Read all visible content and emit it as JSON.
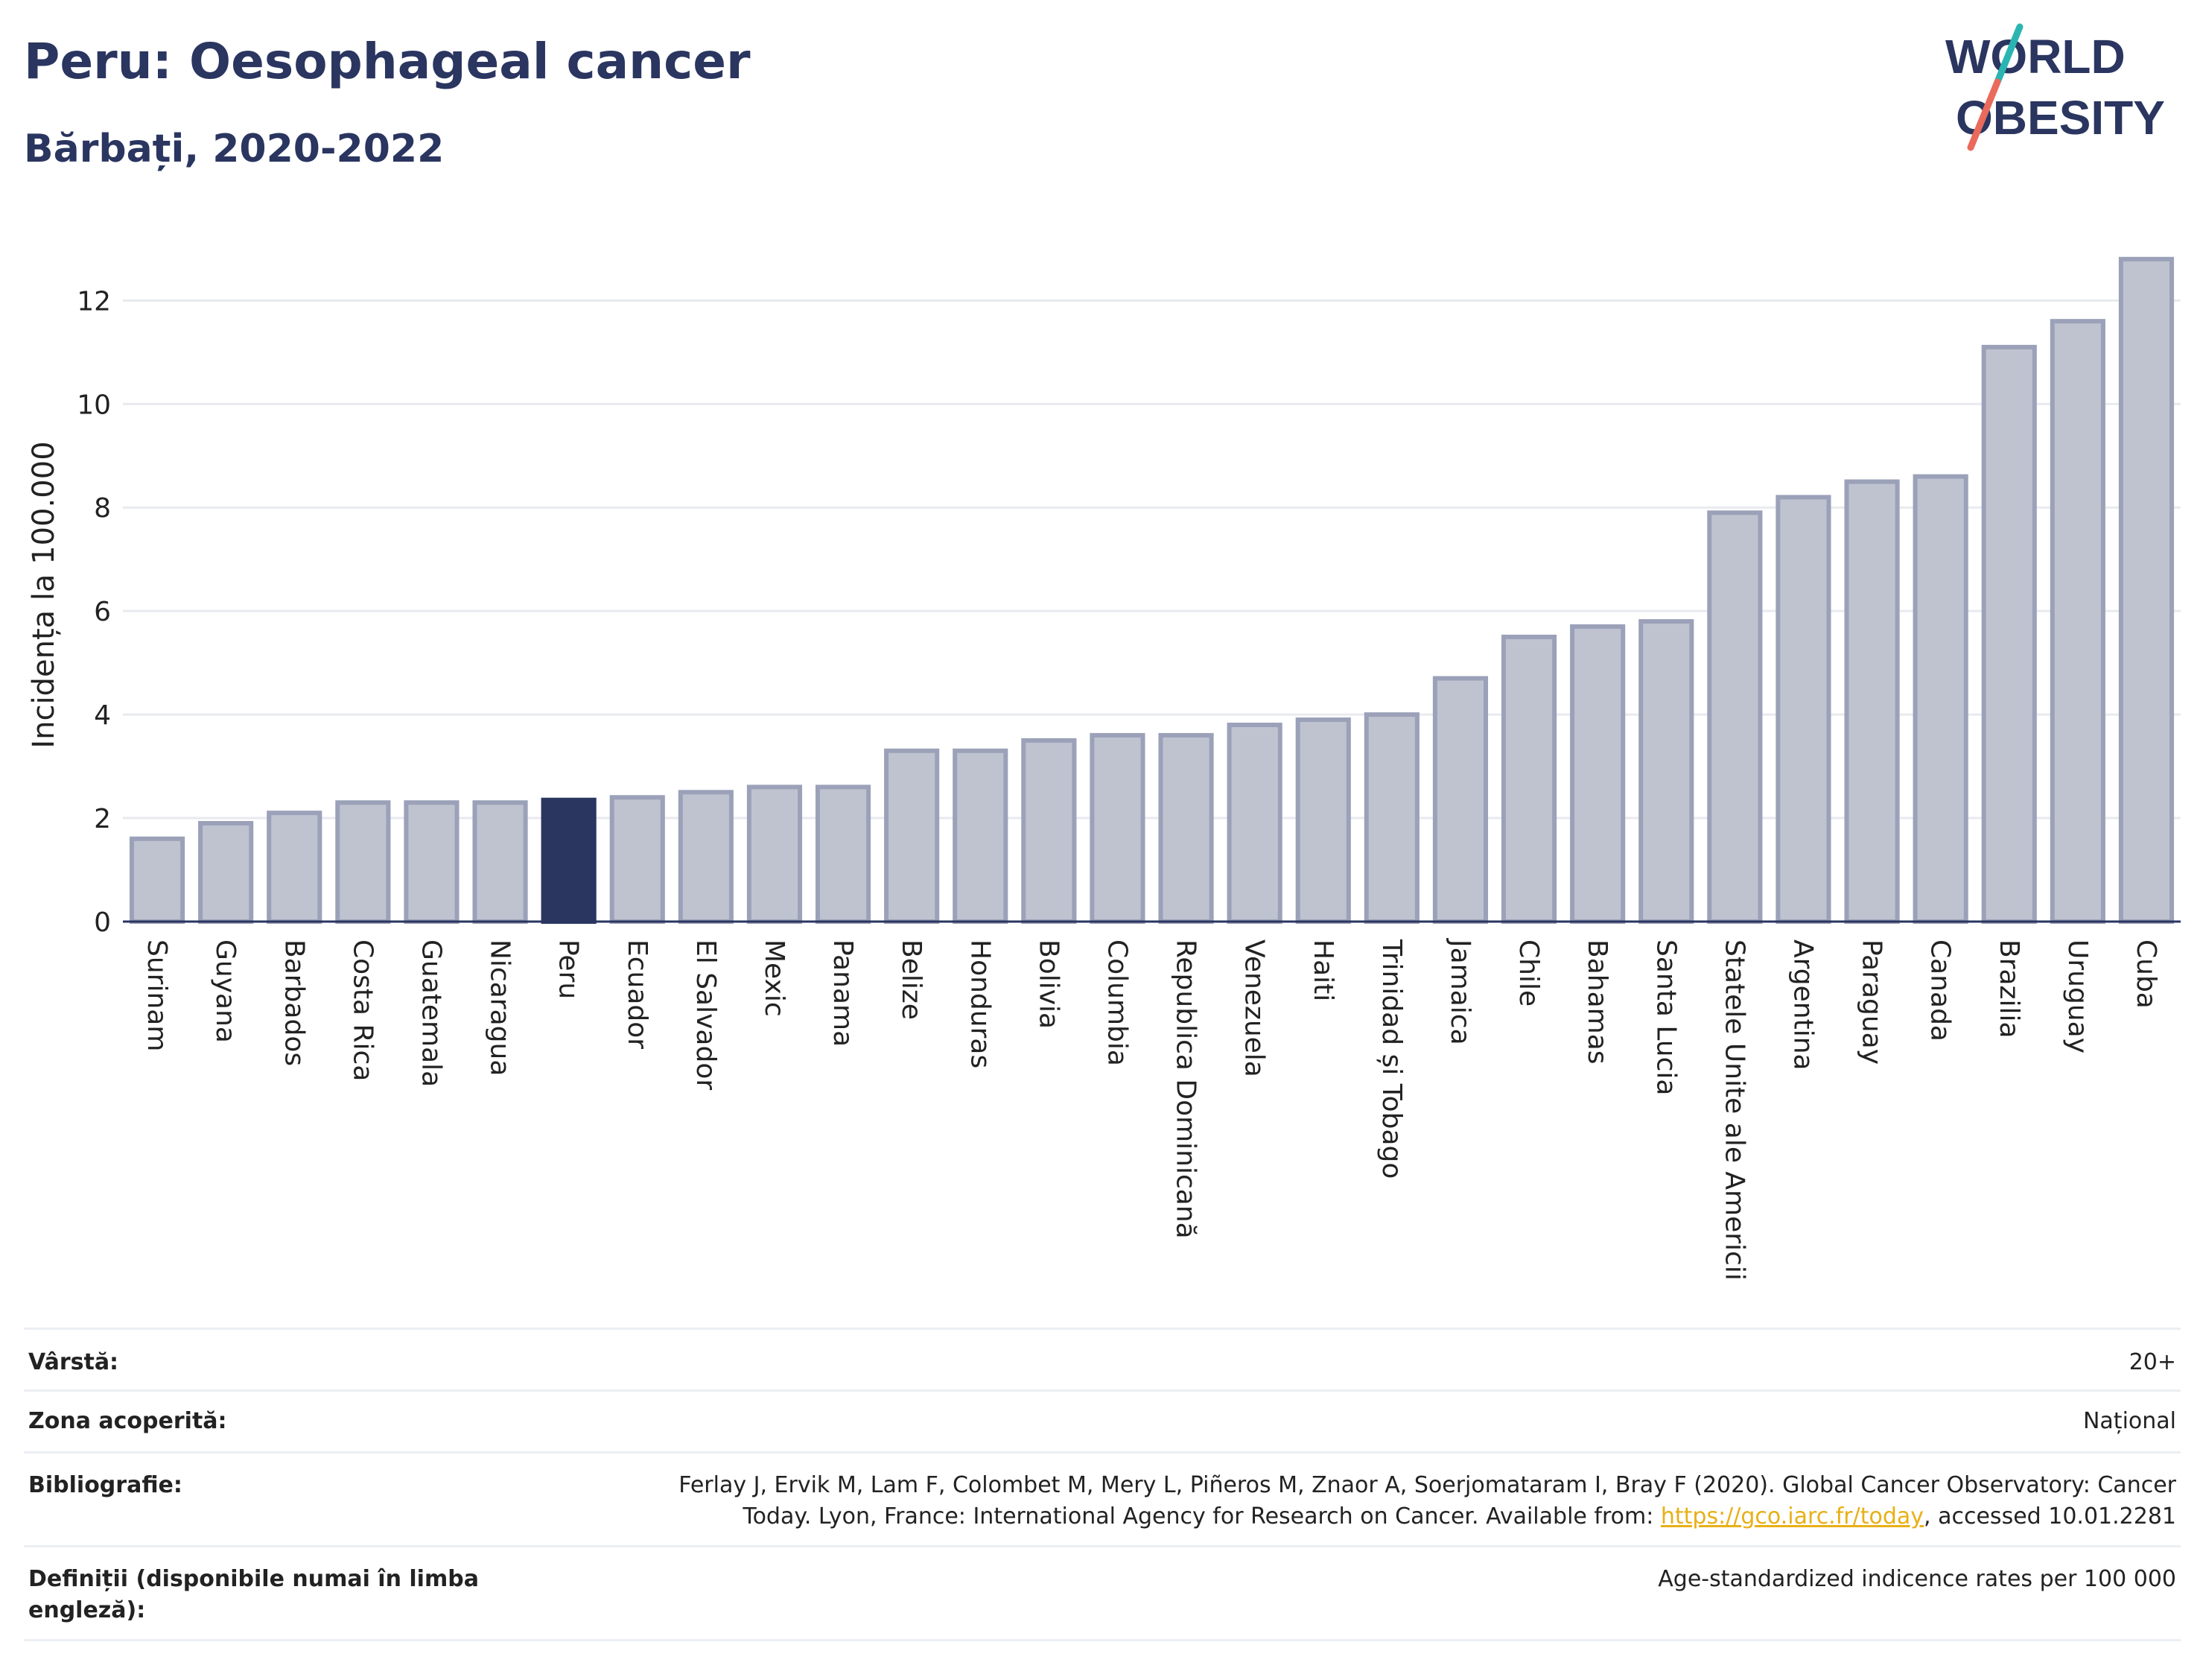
{
  "header": {
    "title": "Peru: Oesophageal cancer",
    "subtitle": "Bărbați, 2020-2022"
  },
  "logo": {
    "line1": "WORLD",
    "line2": "OBESITY",
    "colors": {
      "text": "#2a3560",
      "slash_top": "#2bb5b2",
      "slash_bottom": "#ea6a5c"
    }
  },
  "chart_data": {
    "type": "bar",
    "ylabel": "Incidența la 100.000",
    "xlabel": "",
    "ylim": [
      0,
      13.2
    ],
    "yticks": [
      0,
      2,
      4,
      6,
      8,
      10,
      12
    ],
    "grid": true,
    "highlight": "Peru",
    "colors": {
      "bar": "#bfc3d0",
      "bar_edge": "#9ba1b8",
      "highlight": "#2a3560",
      "grid": "#e8eaf0",
      "axis": "#2a3560"
    },
    "categories": [
      "Surinam",
      "Guyana",
      "Barbados",
      "Costa Rica",
      "Guatemala",
      "Nicaragua",
      "Peru",
      "Ecuador",
      "El Salvador",
      "Mexic",
      "Panama",
      "Belize",
      "Honduras",
      "Bolivia",
      "Columbia",
      "Republica Dominicană",
      "Venezuela",
      "Haiti",
      "Trinidad și Tobago",
      "Jamaica",
      "Chile",
      "Bahamas",
      "Santa Lucia",
      "Statele Unite ale Americii",
      "Argentina",
      "Paraguay",
      "Canada",
      "Brazilia",
      "Uruguay",
      "Cuba"
    ],
    "values": [
      1.6,
      1.9,
      2.1,
      2.3,
      2.3,
      2.3,
      2.35,
      2.4,
      2.5,
      2.6,
      2.6,
      3.3,
      3.3,
      3.5,
      3.6,
      3.6,
      3.8,
      3.9,
      4.0,
      4.7,
      5.5,
      5.7,
      5.8,
      7.9,
      8.2,
      8.5,
      8.6,
      11.1,
      11.6,
      12.8
    ]
  },
  "info": {
    "age_label": "Vârstă:",
    "age_value": "20+",
    "coverage_label": "Zona acoperită:",
    "coverage_value": "Național",
    "bibliography_label": "Bibliografie:",
    "bibliography_line1": "Ferlay J, Ervik M, Lam F, Colombet M, Mery L, Piñeros M, Znaor A, Soerjomataram I, Bray F (2020). Global Cancer Observatory: Cancer",
    "bibliography_line2_pre": "Today. Lyon, France: International Agency for Research on Cancer. Available from: ",
    "bibliography_link": "https://gco.iarc.fr/today",
    "bibliography_line2_post": ", accessed 10.01.2281",
    "definitions_label": "Definiții (disponibile numai în limba engleză):",
    "definitions_value": "Age-standardized indicence rates per 100 000"
  }
}
